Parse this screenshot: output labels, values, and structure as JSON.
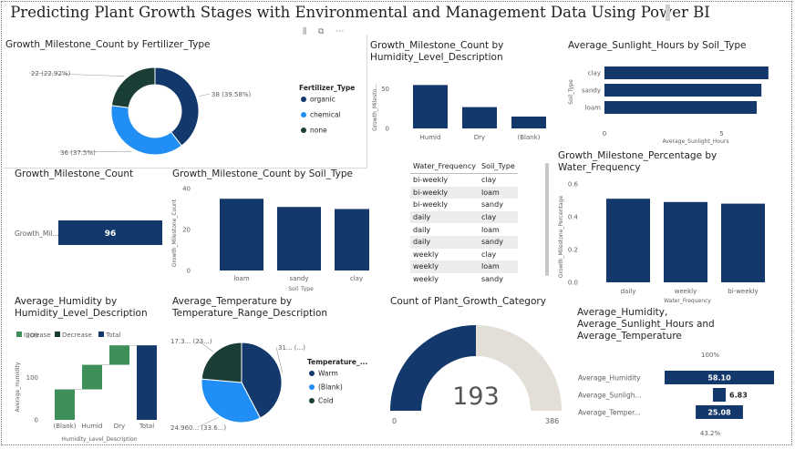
{
  "page": {
    "title": "Predicting Plant Growth Stages with Environmental and Management Data Using Power BI"
  },
  "colors": {
    "dark_blue": "#12386c",
    "light_blue": "#208ef4",
    "dark_green": "#1a3d36",
    "green": "#3f8f5a",
    "gauge_grey": "#e3ded8"
  },
  "table_water_soil": {
    "columns": [
      "Water_Frequency",
      "Soil_Type"
    ],
    "rows": [
      [
        "bi-weekly",
        "clay"
      ],
      [
        "bi-weekly",
        "loam"
      ],
      [
        "bi-weekly",
        "sandy"
      ],
      [
        "daily",
        "clay"
      ],
      [
        "daily",
        "loam"
      ],
      [
        "daily",
        "sandy"
      ],
      [
        "weekly",
        "clay"
      ],
      [
        "weekly",
        "loam"
      ],
      [
        "weekly",
        "sandy"
      ]
    ]
  },
  "chart_data": [
    {
      "id": "fertilizer",
      "type": "pie",
      "title": "Growth_Milestone_Count by Fertilizer_Type",
      "legend_title": "Fertilizer_Type",
      "legend_position": "right",
      "slices": [
        {
          "label": "organic",
          "value": 38,
          "data_label": "38 (39.58%)",
          "color": "#12386c"
        },
        {
          "label": "chemical",
          "value": 36,
          "data_label": "36 (37.5%)",
          "color": "#208ef4"
        },
        {
          "label": "none",
          "value": 22,
          "data_label": "22 (22.92%)",
          "color": "#1a3d36"
        }
      ]
    },
    {
      "id": "humidity",
      "type": "bar",
      "title": "Growth_Milestone_Count by Humidity_Level_Description",
      "categories": [
        "Humid",
        "Dry",
        "(Blank)"
      ],
      "values": [
        55,
        27,
        15
      ],
      "ylabel": "Growth_Milesto...",
      "ylim": [
        0,
        60
      ],
      "yticks": [
        "0",
        "50"
      ]
    },
    {
      "id": "sunlight",
      "type": "bar",
      "orientation": "horizontal",
      "title": "Average_Sunlight_Hours by Soil_Type",
      "categories": [
        "clay",
        "sandy",
        "loam"
      ],
      "values": [
        7.0,
        6.7,
        6.5
      ],
      "xlabel": "Average_Sunlight_Hours",
      "ylabel": "Soil_Type",
      "xlim": [
        0,
        7.2
      ],
      "xticks": [
        "0",
        "5"
      ]
    },
    {
      "id": "card",
      "type": "bar",
      "orientation": "horizontal",
      "title": "Growth_Milestone_Count",
      "categories": [
        "Growth_Mil..."
      ],
      "values": [
        96
      ],
      "data_labels": [
        "96"
      ]
    },
    {
      "id": "soil",
      "type": "bar",
      "title": "Growth_Milestone_Count by Soil_Type",
      "categories": [
        "loam",
        "sandy",
        "clay"
      ],
      "values": [
        35,
        31,
        30
      ],
      "xlabel": "Soil_Type",
      "ylabel": "Growth_Milestone_Count",
      "ylim": [
        0,
        40
      ],
      "yticks": [
        "0",
        "20",
        "40"
      ]
    },
    {
      "id": "water",
      "type": "bar",
      "title": "Growth_Milestone_Percentage by Water_Frequency",
      "categories": [
        "daily",
        "weekly",
        "bi-weekly"
      ],
      "values": [
        0.51,
        0.49,
        0.48
      ],
      "xlabel": "Water_Frequency",
      "ylabel": "Growth_Milestone_Percentage",
      "ylim": [
        0,
        0.6
      ],
      "yticks": [
        "0.0",
        "0.2",
        "0.4",
        "0.6"
      ]
    },
    {
      "id": "waterfall",
      "type": "bar",
      "subtype": "waterfall",
      "title": "Average_Humidity by Humidity_Level_Description",
      "legend": [
        "Increase",
        "Decrease",
        "Total"
      ],
      "legend_position": "top-left",
      "categories": [
        "(Blank)",
        "Humid",
        "Dry",
        "Total"
      ],
      "steps": [
        {
          "start": 0,
          "end": 72,
          "kind": "Increase"
        },
        {
          "start": 72,
          "end": 130,
          "kind": "Increase"
        },
        {
          "start": 130,
          "end": 176,
          "kind": "Increase"
        },
        {
          "start": 0,
          "end": 176,
          "kind": "Total"
        }
      ],
      "xlabel": "Humidity_Level_Description",
      "ylabel": "Average_Humidity",
      "ylim": [
        0,
        200
      ],
      "yticks": [
        "0",
        "100",
        "200"
      ]
    },
    {
      "id": "temperature",
      "type": "pie",
      "title": "Average_Temperature by Temperature_Range_Description",
      "legend_title": "Temperature_...",
      "legend_position": "right",
      "slices": [
        {
          "label": "Warm",
          "value": 31,
          "data_label": "31... (...)",
          "color": "#12386c"
        },
        {
          "label": "(Blank)",
          "value": 24.96,
          "data_label": "24.960... (33.6...)",
          "color": "#208ef4"
        },
        {
          "label": "Cold",
          "value": 17.3,
          "data_label": "17.3... (23...)",
          "color": "#1a3d36"
        }
      ]
    },
    {
      "id": "gauge",
      "type": "gauge",
      "title": "Count of Plant_Growth_Category",
      "value": 193,
      "min": 0,
      "max": 386,
      "value_label": "193",
      "min_label": "0",
      "max_label": "386"
    },
    {
      "id": "funnel",
      "type": "bar",
      "subtype": "funnel",
      "title": "Average_Humidity, Average_Sunlight_Hours and Average_Temperature",
      "title_lines": [
        "Average_Humidity,",
        "Average_Sunlight_Hours and",
        "Average_Temperature"
      ],
      "categories": [
        "Average_Humidity",
        "Average_Sunligh...",
        "Average_Temper..."
      ],
      "values": [
        58.1,
        6.83,
        25.08
      ],
      "data_labels": [
        "58.10",
        "6.83",
        "25.08"
      ],
      "top_percent": "100%",
      "bottom_percent": "43.2%"
    }
  ]
}
